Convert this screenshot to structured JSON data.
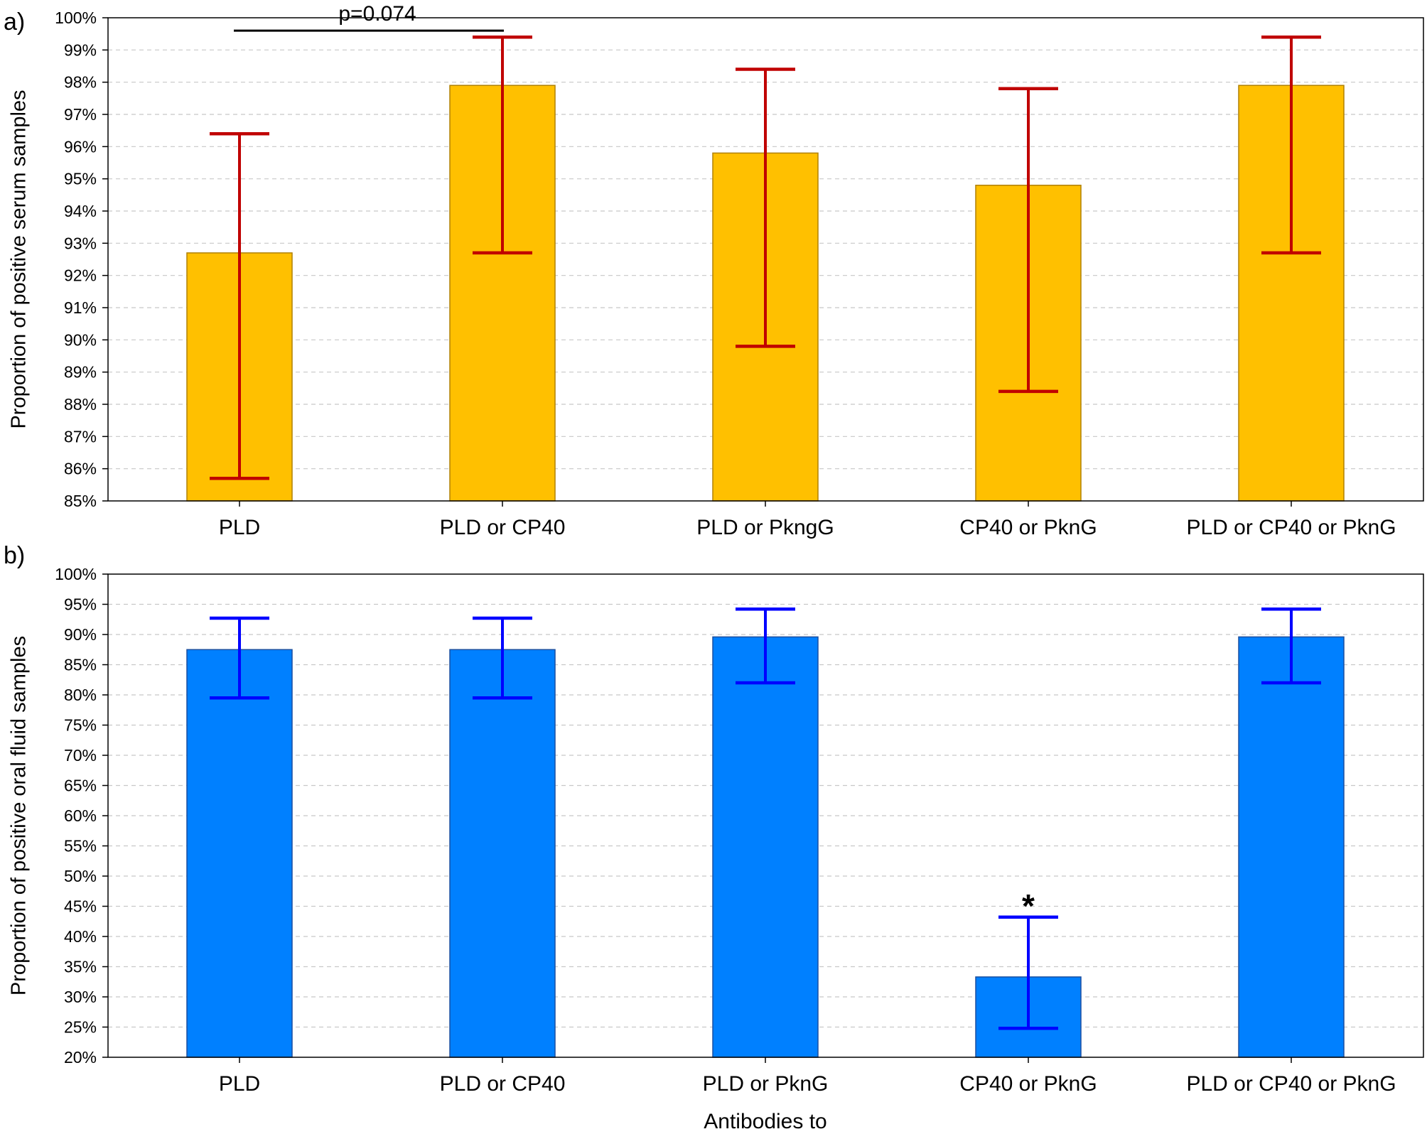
{
  "figure": {
    "xlabel": "Antibodies to"
  },
  "chart_data": [
    {
      "type": "bar",
      "panel_label": "a)",
      "ylabel": "Proportion of positive serum samples",
      "categories": [
        "PLD",
        "PLD or CP40",
        "PLD or PkngG",
        "CP40 or PknG",
        "PLD or CP40 or PknG"
      ],
      "values": [
        92.7,
        97.9,
        95.8,
        94.8,
        97.9
      ],
      "error_low": [
        85.7,
        92.7,
        89.8,
        88.4,
        92.7
      ],
      "error_high": [
        96.4,
        99.4,
        98.4,
        97.8,
        99.4
      ],
      "ylim": [
        85,
        100
      ],
      "yticks": [
        "85%",
        "86%",
        "87%",
        "88%",
        "89%",
        "90%",
        "91%",
        "92%",
        "93%",
        "94%",
        "95%",
        "96%",
        "97%",
        "98%",
        "99%",
        "100%"
      ],
      "ytick_values": [
        85,
        86,
        87,
        88,
        89,
        90,
        91,
        92,
        93,
        94,
        95,
        96,
        97,
        98,
        99,
        100
      ],
      "grid": true,
      "bar_color": "#FFC000",
      "error_color": "#C00000",
      "annotations": [
        {
          "type": "bracket",
          "from_category": 0,
          "to_category": 1,
          "y": 99.6,
          "text": "p=0.074"
        }
      ]
    },
    {
      "type": "bar",
      "panel_label": "b)",
      "ylabel": "Proportion of positive oral fluid samples",
      "categories": [
        "PLD",
        "PLD or CP40",
        "PLD or PknG",
        "CP40 or PknG",
        "PLD or CP40 or PknG"
      ],
      "values": [
        87.5,
        87.5,
        89.6,
        33.3,
        89.6
      ],
      "error_low": [
        79.5,
        79.5,
        82.0,
        24.8,
        82.0
      ],
      "error_high": [
        92.7,
        92.7,
        94.2,
        43.2,
        94.2
      ],
      "ylim": [
        20,
        100
      ],
      "yticks": [
        "20%",
        "25%",
        "30%",
        "35%",
        "40%",
        "45%",
        "50%",
        "55%",
        "60%",
        "65%",
        "70%",
        "75%",
        "80%",
        "85%",
        "90%",
        "95%",
        "100%"
      ],
      "ytick_values": [
        20,
        25,
        30,
        35,
        40,
        45,
        50,
        55,
        60,
        65,
        70,
        75,
        80,
        85,
        90,
        95,
        100
      ],
      "grid": true,
      "bar_color": "#0080FF",
      "error_color": "#0000FF",
      "annotations": [
        {
          "type": "marker",
          "category": 3,
          "text": "*"
        }
      ]
    }
  ]
}
